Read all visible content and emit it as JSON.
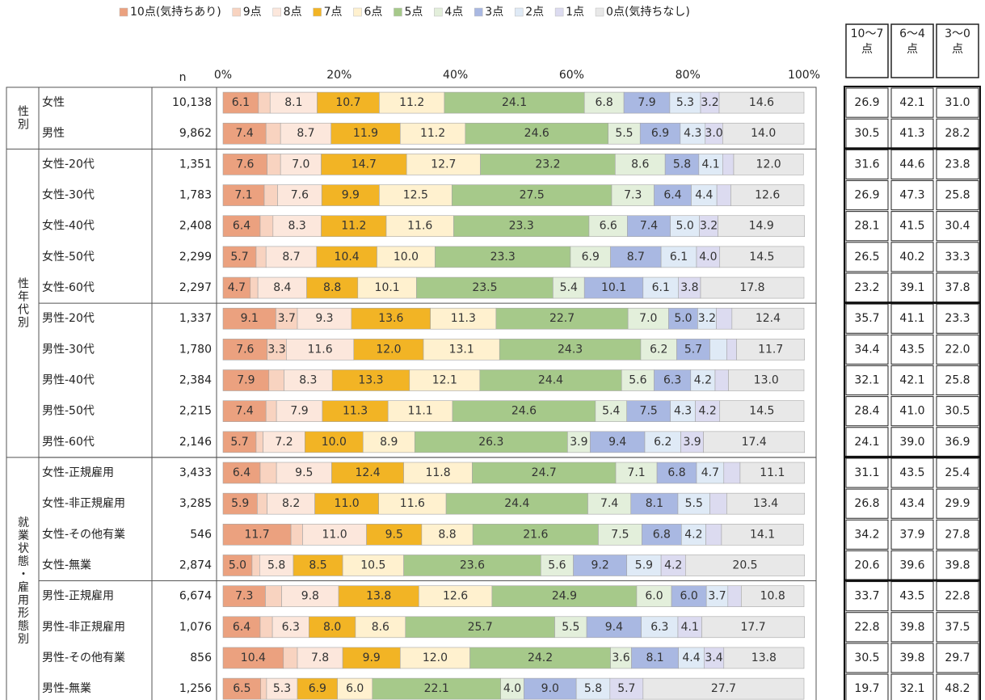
{
  "chart_data": {
    "type": "stacked-barh",
    "categories": [
      "女性",
      "男性",
      "女性-20代",
      "女性-30代",
      "女性-40代",
      "女性-50代",
      "女性-60代",
      "男性-20代",
      "男性-30代",
      "男性-40代",
      "男性-50代",
      "男性-60代",
      "女性-正規雇用",
      "女性-非正規雇用",
      "女性-その他有業",
      "女性-無業",
      "男性-正規雇用",
      "男性-非正規雇用",
      "男性-その他有業",
      "男性-無業"
    ],
    "groups": [
      {
        "label": "性別",
        "span": 2
      },
      {
        "label": "性年代別",
        "span": 10
      },
      {
        "label": "就業状態・雇用形態別",
        "span": 8
      }
    ],
    "n_label": "n",
    "n": [
      "10,138",
      "9,862",
      "1,351",
      "1,783",
      "2,408",
      "2,299",
      "2,297",
      "1,337",
      "1,780",
      "2,384",
      "2,215",
      "2,146",
      "3,433",
      "3,285",
      "546",
      "2,874",
      "6,674",
      "1,076",
      "856",
      "1,256"
    ],
    "xlim": [
      0,
      100
    ],
    "xticks": [
      {
        "value": 0,
        "label": "0%"
      },
      {
        "value": 20,
        "label": "20%"
      },
      {
        "value": 40,
        "label": "40%"
      },
      {
        "value": 60,
        "label": "60%"
      },
      {
        "value": 80,
        "label": "80%"
      },
      {
        "value": 100,
        "label": "100%"
      }
    ],
    "series": [
      {
        "name": "10点(気持ちあり)",
        "color": "#EBA17F",
        "values": [
          6.1,
          7.4,
          7.6,
          7.1,
          6.4,
          5.7,
          4.7,
          9.1,
          7.6,
          7.9,
          7.4,
          5.7,
          6.4,
          5.9,
          11.7,
          5.0,
          7.3,
          6.4,
          10.4,
          6.5
        ],
        "value_labels": [
          "6.1",
          "7.4",
          "7.6",
          "7.1",
          "6.4",
          "5.7",
          "4.7",
          "9.1",
          "7.6",
          "7.9",
          "7.4",
          "5.7",
          "6.4",
          "5.9",
          "11.7",
          "5.0",
          "7.3",
          "6.4",
          "10.4",
          "6.5"
        ]
      },
      {
        "name": "9点",
        "color": "#F8D3C0",
        "values": [
          2.0,
          2.5,
          2.3,
          2.3,
          2.2,
          1.7,
          1.3,
          3.7,
          3.3,
          2.6,
          1.8,
          1.2,
          2.8,
          1.7,
          2.0,
          1.3,
          2.8,
          2.1,
          2.4,
          1.0
        ],
        "value_labels": [
          null,
          null,
          null,
          null,
          null,
          null,
          null,
          "3.7",
          "3.3",
          null,
          null,
          null,
          null,
          null,
          null,
          null,
          null,
          null,
          null,
          null
        ]
      },
      {
        "name": "8点",
        "color": "#FCE7DC",
        "values": [
          8.1,
          8.7,
          7.0,
          7.6,
          8.3,
          8.7,
          8.4,
          9.3,
          11.6,
          8.3,
          7.9,
          7.2,
          9.5,
          8.2,
          11.0,
          5.8,
          9.8,
          6.3,
          7.8,
          5.3
        ],
        "value_labels": [
          "8.1",
          "8.7",
          "7.0",
          "7.6",
          "8.3",
          "8.7",
          "8.4",
          "9.3",
          "11.6",
          "8.3",
          "7.9",
          "7.2",
          "9.5",
          "8.2",
          "11.0",
          "5.8",
          "9.8",
          "6.3",
          "7.8",
          "5.3"
        ]
      },
      {
        "name": "7点",
        "color": "#F2B425",
        "values": [
          10.7,
          11.9,
          14.7,
          9.9,
          11.2,
          10.4,
          8.8,
          13.6,
          12.0,
          13.3,
          11.3,
          10.0,
          12.4,
          11.0,
          9.5,
          8.5,
          13.8,
          8.0,
          9.9,
          6.9
        ],
        "value_labels": [
          "10.7",
          "11.9",
          "14.7",
          "9.9",
          "11.2",
          "10.4",
          "8.8",
          "13.6",
          "12.0",
          "13.3",
          "11.3",
          "10.0",
          "12.4",
          "11.0",
          "9.5",
          "8.5",
          "13.8",
          "8.0",
          "9.9",
          "6.9"
        ]
      },
      {
        "name": "6点",
        "color": "#FFF1CF",
        "values": [
          11.2,
          11.2,
          12.7,
          12.5,
          11.6,
          10.0,
          10.1,
          11.3,
          13.1,
          12.1,
          11.1,
          8.9,
          11.8,
          11.6,
          8.8,
          10.5,
          12.6,
          8.6,
          12.0,
          6.0
        ],
        "value_labels": [
          "11.2",
          "11.2",
          "12.7",
          "12.5",
          "11.6",
          "10.0",
          "10.1",
          "11.3",
          "13.1",
          "12.1",
          "11.1",
          "8.9",
          "11.8",
          "11.6",
          "8.8",
          "10.5",
          "12.6",
          "8.6",
          "12.0",
          "6.0"
        ]
      },
      {
        "name": "5点",
        "color": "#A6C98A",
        "values": [
          24.1,
          24.6,
          23.2,
          27.5,
          23.3,
          23.3,
          23.5,
          22.7,
          24.3,
          24.4,
          24.6,
          26.3,
          24.7,
          24.4,
          21.6,
          23.6,
          24.9,
          25.7,
          24.2,
          22.1
        ],
        "value_labels": [
          "24.1",
          "24.6",
          "23.2",
          "27.5",
          "23.3",
          "23.3",
          "23.5",
          "22.7",
          "24.3",
          "24.4",
          "24.6",
          "26.3",
          "24.7",
          "24.4",
          "21.6",
          "23.6",
          "24.9",
          "25.7",
          "24.2",
          "22.1"
        ]
      },
      {
        "name": "4点",
        "color": "#E3EFDB",
        "values": [
          6.8,
          5.5,
          8.6,
          7.3,
          6.6,
          6.9,
          5.4,
          7.0,
          6.2,
          5.6,
          5.4,
          3.9,
          7.1,
          7.4,
          7.5,
          5.6,
          6.0,
          5.5,
          3.6,
          4.0
        ],
        "value_labels": [
          "6.8",
          "5.5",
          "8.6",
          "7.3",
          "6.6",
          "6.9",
          "5.4",
          "7.0",
          "6.2",
          "5.6",
          "5.4",
          "3.9",
          "7.1",
          "7.4",
          "7.5",
          "5.6",
          "6.0",
          "5.5",
          "3.6",
          "4.0"
        ]
      },
      {
        "name": "3点",
        "color": "#A9B8E2",
        "values": [
          7.9,
          6.9,
          5.8,
          6.4,
          7.4,
          8.7,
          10.1,
          5.0,
          5.7,
          6.3,
          7.5,
          9.4,
          6.8,
          8.1,
          6.8,
          9.2,
          6.0,
          9.4,
          8.1,
          9.0
        ],
        "value_labels": [
          "7.9",
          "6.9",
          "5.8",
          "6.4",
          "7.4",
          "8.7",
          "10.1",
          "5.0",
          "5.7",
          "6.3",
          "7.5",
          "9.4",
          "6.8",
          "8.1",
          "6.8",
          "9.2",
          "6.0",
          "9.4",
          "8.1",
          "9.0"
        ]
      },
      {
        "name": "2点",
        "color": "#DFEAF6",
        "values": [
          5.3,
          4.3,
          4.1,
          4.4,
          5.0,
          6.1,
          6.1,
          3.2,
          2.9,
          4.2,
          4.3,
          6.2,
          4.7,
          5.5,
          4.2,
          5.9,
          3.7,
          6.3,
          4.4,
          5.8
        ],
        "value_labels": [
          "5.3",
          "4.3",
          "4.1",
          "4.4",
          "5.0",
          "6.1",
          "6.1",
          "3.2",
          null,
          "4.2",
          "4.3",
          "6.2",
          "4.7",
          "5.5",
          "4.2",
          "5.9",
          "3.7",
          "6.3",
          "4.4",
          "5.8"
        ]
      },
      {
        "name": "1点",
        "color": "#DCDBF0",
        "values": [
          3.2,
          3.0,
          1.9,
          2.4,
          3.2,
          4.0,
          3.8,
          2.7,
          1.7,
          2.3,
          4.2,
          3.9,
          2.8,
          2.9,
          2.7,
          4.2,
          2.3,
          4.1,
          3.4,
          5.7
        ],
        "value_labels": [
          "3.2",
          "3.0",
          null,
          null,
          "3.2",
          "4.0",
          "3.8",
          null,
          null,
          null,
          "4.2",
          "3.9",
          null,
          null,
          null,
          "4.2",
          null,
          "4.1",
          "3.4",
          "5.7"
        ]
      },
      {
        "name": "0点(気持ちなし)",
        "color": "#E8E8E8",
        "values": [
          14.6,
          14.0,
          12.0,
          12.6,
          14.9,
          14.5,
          17.8,
          12.4,
          11.7,
          13.0,
          14.5,
          17.4,
          11.1,
          13.4,
          14.1,
          20.5,
          10.8,
          17.7,
          13.8,
          27.7
        ],
        "value_labels": [
          "14.6",
          "14.0",
          "12.0",
          "12.6",
          "14.9",
          "14.5",
          "17.8",
          "12.4",
          "11.7",
          "13.0",
          "14.5",
          "17.4",
          "11.1",
          "13.4",
          "14.1",
          "20.5",
          "10.8",
          "17.7",
          "13.8",
          "27.7"
        ]
      }
    ],
    "summary": {
      "columns": [
        "10～7点",
        "6～4点",
        "3～0点"
      ],
      "rows": [
        [
          "26.9",
          "42.1",
          "31.0"
        ],
        [
          "30.5",
          "41.3",
          "28.2"
        ],
        [
          "31.6",
          "44.6",
          "23.8"
        ],
        [
          "26.9",
          "47.3",
          "25.8"
        ],
        [
          "28.1",
          "41.5",
          "30.4"
        ],
        [
          "26.5",
          "40.2",
          "33.3"
        ],
        [
          "23.2",
          "39.1",
          "37.8"
        ],
        [
          "35.7",
          "41.1",
          "23.3"
        ],
        [
          "34.4",
          "43.5",
          "22.0"
        ],
        [
          "32.1",
          "42.1",
          "25.8"
        ],
        [
          "28.4",
          "41.0",
          "30.5"
        ],
        [
          "24.1",
          "39.0",
          "36.9"
        ],
        [
          "31.1",
          "43.5",
          "25.4"
        ],
        [
          "26.8",
          "43.4",
          "29.9"
        ],
        [
          "34.2",
          "37.9",
          "27.8"
        ],
        [
          "20.6",
          "39.6",
          "39.8"
        ],
        [
          "33.7",
          "43.5",
          "22.8"
        ],
        [
          "22.8",
          "39.8",
          "37.5"
        ],
        [
          "30.5",
          "39.8",
          "29.7"
        ],
        [
          "19.7",
          "32.1",
          "48.2"
        ]
      ]
    }
  }
}
